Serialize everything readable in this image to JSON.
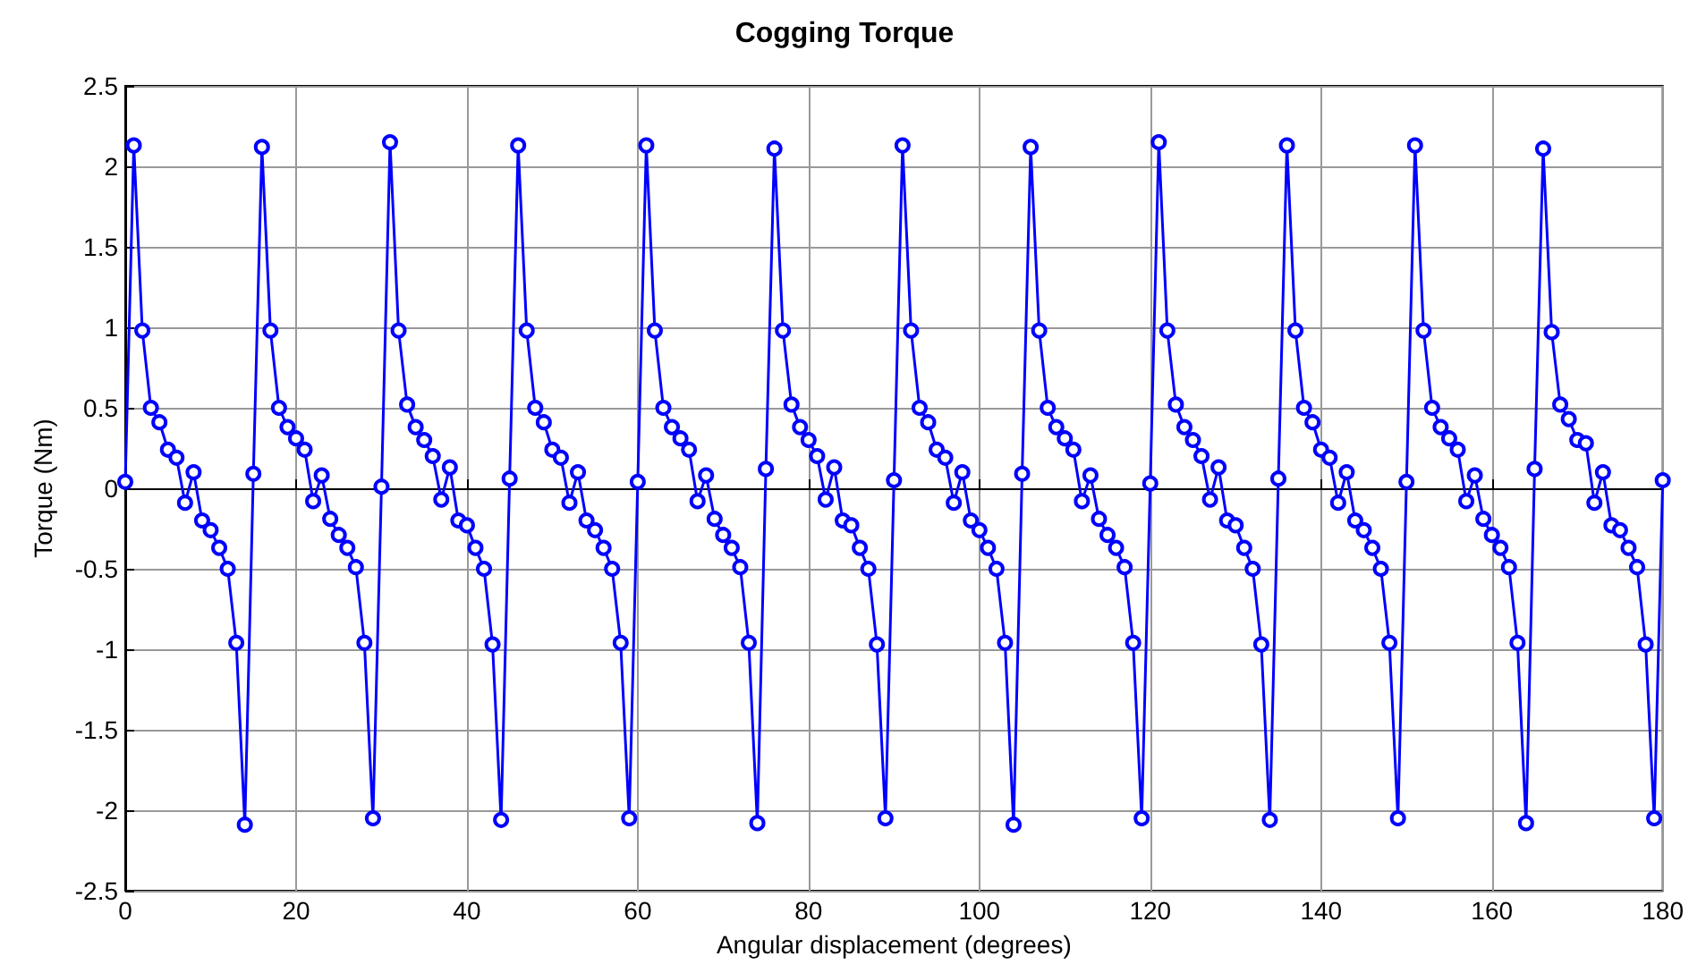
{
  "chart_data": {
    "type": "line",
    "title": "Cogging Torque",
    "xlabel": "Angular displacement (degrees)",
    "ylabel": "Torque (Nm)",
    "x": [
      0,
      1,
      2,
      3,
      4,
      5,
      6,
      7,
      8,
      9,
      10,
      11,
      12,
      13,
      14,
      15,
      16,
      17,
      18,
      19,
      20,
      21,
      22,
      23,
      24,
      25,
      26,
      27,
      28,
      29,
      30,
      31,
      32,
      33,
      34,
      35,
      36,
      37,
      38,
      39,
      40,
      41,
      42,
      43,
      44,
      45,
      46,
      47,
      48,
      49,
      50,
      51,
      52,
      53,
      54,
      55,
      56,
      57,
      58,
      59,
      60,
      61,
      62,
      63,
      64,
      65,
      66,
      67,
      68,
      69,
      70,
      71,
      72,
      73,
      74,
      75,
      76,
      77,
      78,
      79,
      80,
      81,
      82,
      83,
      84,
      85,
      86,
      87,
      88,
      89,
      90,
      91,
      92,
      93,
      94,
      95,
      96,
      97,
      98,
      99,
      100,
      101,
      102,
      103,
      104,
      105,
      106,
      107,
      108,
      109,
      110,
      111,
      112,
      113,
      114,
      115,
      116,
      117,
      118,
      119,
      120,
      121,
      122,
      123,
      124,
      125,
      126,
      127,
      128,
      129,
      130,
      131,
      132,
      133,
      134,
      135,
      136,
      137,
      138,
      139,
      140,
      141,
      142,
      143,
      144,
      145,
      146,
      147,
      148,
      149,
      150,
      151,
      152,
      153,
      154,
      155,
      156,
      157,
      158,
      159,
      160,
      161,
      162,
      163,
      164,
      165,
      166,
      167,
      168,
      169,
      170,
      171,
      172,
      173,
      174,
      175,
      176,
      177,
      178,
      179,
      180
    ],
    "series": [
      {
        "color": "#0000ff",
        "values": [
          0.04,
          2.13,
          0.98,
          0.5,
          0.41,
          0.24,
          0.19,
          -0.09,
          0.1,
          -0.2,
          -0.26,
          -0.37,
          -0.5,
          -0.96,
          -2.09,
          0.09,
          2.12,
          0.98,
          0.5,
          0.38,
          0.31,
          0.24,
          -0.08,
          0.08,
          -0.19,
          -0.29,
          -0.37,
          -0.49,
          -0.96,
          -2.05,
          0.01,
          2.15,
          0.98,
          0.52,
          0.38,
          0.3,
          0.2,
          -0.07,
          0.13,
          -0.2,
          -0.23,
          -0.37,
          -0.5,
          -0.97,
          -2.06,
          0.06,
          2.13,
          0.98,
          0.5,
          0.41,
          0.24,
          0.19,
          -0.09,
          0.1,
          -0.2,
          -0.26,
          -0.37,
          -0.5,
          -0.96,
          -2.05,
          0.04,
          2.13,
          0.98,
          0.5,
          0.38,
          0.31,
          0.24,
          -0.08,
          0.08,
          -0.19,
          -0.29,
          -0.37,
          -0.49,
          -0.96,
          -2.08,
          0.12,
          2.11,
          0.98,
          0.52,
          0.38,
          0.3,
          0.2,
          -0.07,
          0.13,
          -0.2,
          -0.23,
          -0.37,
          -0.5,
          -0.97,
          -2.05,
          0.05,
          2.13,
          0.98,
          0.5,
          0.41,
          0.24,
          0.19,
          -0.09,
          0.1,
          -0.2,
          -0.26,
          -0.37,
          -0.5,
          -0.96,
          -2.09,
          0.09,
          2.12,
          0.98,
          0.5,
          0.38,
          0.31,
          0.24,
          -0.08,
          0.08,
          -0.19,
          -0.29,
          -0.37,
          -0.49,
          -0.96,
          -2.05,
          0.03,
          2.15,
          0.98,
          0.52,
          0.38,
          0.3,
          0.2,
          -0.07,
          0.13,
          -0.2,
          -0.23,
          -0.37,
          -0.5,
          -0.97,
          -2.06,
          0.06,
          2.13,
          0.98,
          0.5,
          0.41,
          0.24,
          0.19,
          -0.09,
          0.1,
          -0.2,
          -0.26,
          -0.37,
          -0.5,
          -0.96,
          -2.05,
          0.04,
          2.13,
          0.98,
          0.5,
          0.38,
          0.31,
          0.24,
          -0.08,
          0.08,
          -0.19,
          -0.29,
          -0.37,
          -0.49,
          -0.96,
          -2.08,
          0.12,
          2.11,
          0.97,
          0.52,
          0.43,
          0.3,
          0.28,
          -0.09,
          0.1,
          -0.23,
          -0.26,
          -0.37,
          -0.49,
          -0.97,
          -2.05,
          0.05
        ]
      }
    ],
    "xlim": [
      0,
      180
    ],
    "xticks": [
      0,
      20,
      40,
      60,
      80,
      100,
      120,
      140,
      160,
      180
    ],
    "ylim": [
      -2.5,
      2.5
    ],
    "yticks": [
      -2.5,
      -2,
      -1.5,
      -1,
      -0.5,
      0,
      0.5,
      1,
      1.5,
      2,
      2.5
    ],
    "grid": true,
    "marker": "circle",
    "line_style": "solid"
  }
}
